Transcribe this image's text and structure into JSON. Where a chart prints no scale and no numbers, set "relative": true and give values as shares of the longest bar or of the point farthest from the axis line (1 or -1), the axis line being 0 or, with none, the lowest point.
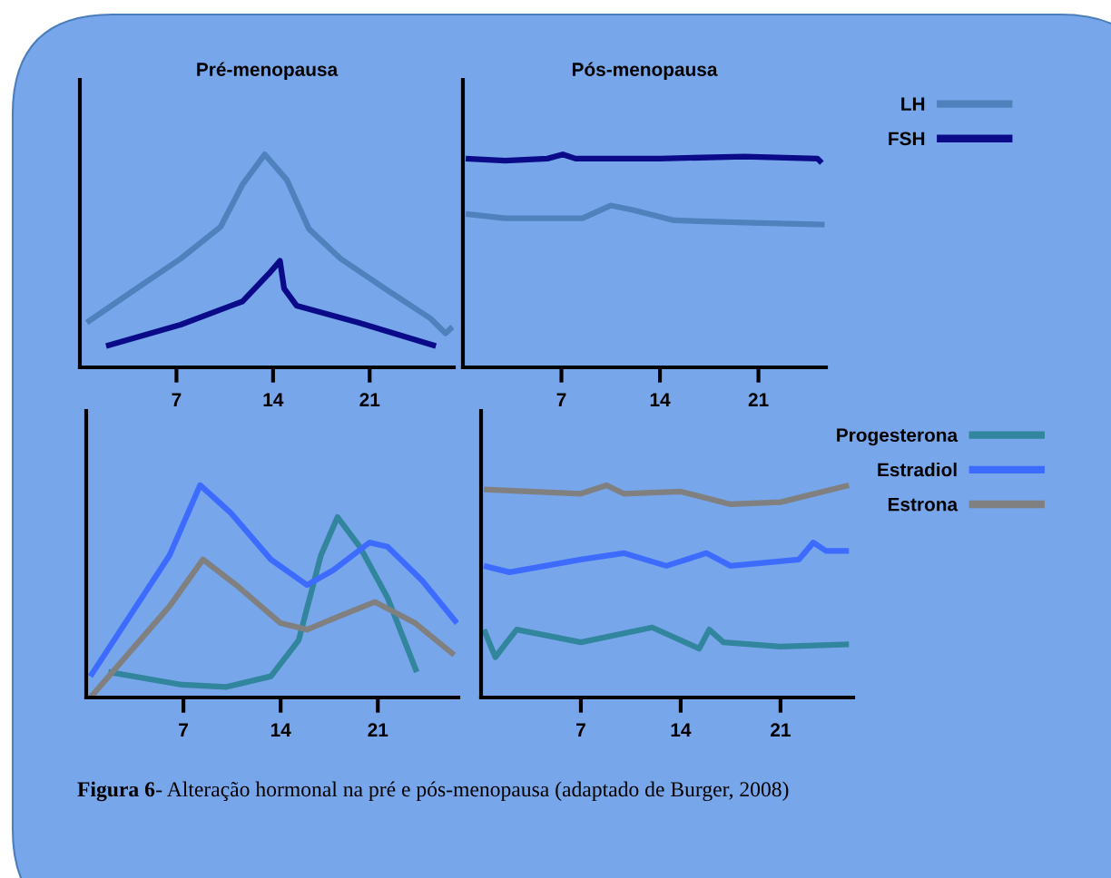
{
  "chart_data": [
    {
      "type": "line",
      "relative": true,
      "title": "Pré-menopausa",
      "xlim": [
        0,
        27.1
      ],
      "xticks": [
        7,
        14,
        21
      ],
      "grid": false,
      "legend": false,
      "marker": "none",
      "line_style": "solid",
      "series": [
        {
          "color": "#4f81bd",
          "x": [
            0.5,
            4.1,
            7.3,
            10.2,
            11.8,
            13.4,
            15,
            16.6,
            18.9,
            22.1,
            25.4,
            26.5,
            27
          ],
          "values": [
            0.21,
            0.37,
            0.51,
            0.66,
            0.86,
            1.0,
            0.88,
            0.65,
            0.51,
            0.37,
            0.23,
            0.16,
            0.19
          ]
        },
        {
          "color": "#0b0b8a",
          "x": [
            1.9,
            7.3,
            11.8,
            13.7,
            14.5,
            14.8,
            15.7,
            20.2,
            25.8
          ],
          "values": [
            0.1,
            0.2,
            0.31,
            0.44,
            0.5,
            0.37,
            0.29,
            0.21,
            0.1
          ]
        }
      ]
    },
    {
      "type": "line",
      "relative": true,
      "title": "Pós-menopausa",
      "xlim": [
        0,
        25.8
      ],
      "xticks": [
        7,
        14,
        21
      ],
      "grid": false,
      "legend": "top right",
      "marker": "none",
      "line_style": "solid",
      "series": [
        {
          "name": "LH",
          "color": "#4f81bd",
          "x": [
            0.2,
            3,
            8.5,
            10.5,
            12,
            15,
            20,
            25.7
          ],
          "values": [
            0.72,
            0.7,
            0.7,
            0.76,
            0.74,
            0.69,
            0.68,
            0.67
          ]
        },
        {
          "name": "FSH",
          "color": "#0b0b8a",
          "x": [
            0.2,
            3,
            6,
            7.1,
            8,
            14,
            20,
            25.2,
            25.5
          ],
          "values": [
            0.98,
            0.97,
            0.98,
            1.0,
            0.98,
            0.98,
            0.99,
            0.98,
            0.96
          ]
        }
      ]
    },
    {
      "type": "line",
      "relative": true,
      "xlim": [
        0,
        26.8
      ],
      "xticks": [
        7,
        14,
        21
      ],
      "grid": false,
      "legend": false,
      "marker": "none",
      "line_style": "solid",
      "series": [
        {
          "color": "#31859c",
          "x": [
            1.6,
            6.9,
            10.1,
            13.3,
            15.3,
            16.9,
            18.1,
            19.7,
            21.7,
            23.8
          ],
          "values": [
            0.12,
            0.06,
            0.05,
            0.1,
            0.27,
            0.67,
            0.85,
            0.71,
            0.47,
            0.12
          ]
        },
        {
          "color": "#3d6bff",
          "x": [
            0.3,
            6,
            8.2,
            10.4,
            13.3,
            15.9,
            17.8,
            20.4,
            21.7,
            24.2,
            26.7
          ],
          "values": [
            0.1,
            0.67,
            1.0,
            0.87,
            0.65,
            0.53,
            0.6,
            0.73,
            0.71,
            0.55,
            0.35
          ]
        },
        {
          "color": "#808080",
          "x": [
            0.3,
            6,
            8.4,
            10.8,
            14,
            15.9,
            18.5,
            20.8,
            23.7,
            26.5
          ],
          "values": [
            0,
            0.43,
            0.65,
            0.53,
            0.35,
            0.32,
            0.39,
            0.45,
            0.35,
            0.2
          ]
        }
      ]
    },
    {
      "type": "line",
      "relative": true,
      "xlim": [
        0,
        26.1
      ],
      "xticks": [
        7,
        14,
        21
      ],
      "grid": false,
      "legend": "top right",
      "marker": "none",
      "line_style": "solid",
      "annotations": [
        "Figura 6",
        "- Alteração hormonal na pré e pós-menopausa (adaptado de Burger, 2008)"
      ],
      "series": [
        {
          "name": "Progesterona",
          "color": "#31859c",
          "x": [
            0.2,
            1,
            1.8,
            2.5,
            7,
            12,
            15.3,
            16,
            17,
            21,
            25.8
          ],
          "values": [
            0.32,
            0.19,
            0.26,
            0.32,
            0.26,
            0.33,
            0.23,
            0.32,
            0.26,
            0.24,
            0.25
          ]
        },
        {
          "name": "Estradiol",
          "color": "#3d6bff",
          "x": [
            0.2,
            2,
            7,
            10,
            13,
            15.8,
            17.5,
            22.3,
            23.3,
            24.2,
            25.8
          ],
          "values": [
            0.62,
            0.59,
            0.65,
            0.68,
            0.62,
            0.68,
            0.62,
            0.65,
            0.73,
            0.69,
            0.69
          ]
        },
        {
          "name": "Estrona",
          "color": "#808080",
          "x": [
            0.2,
            7,
            8.8,
            10,
            14,
            17.5,
            21,
            25.8
          ],
          "values": [
            0.98,
            0.96,
            1.0,
            0.96,
            0.97,
            0.91,
            0.92,
            1.0
          ]
        }
      ]
    }
  ]
}
